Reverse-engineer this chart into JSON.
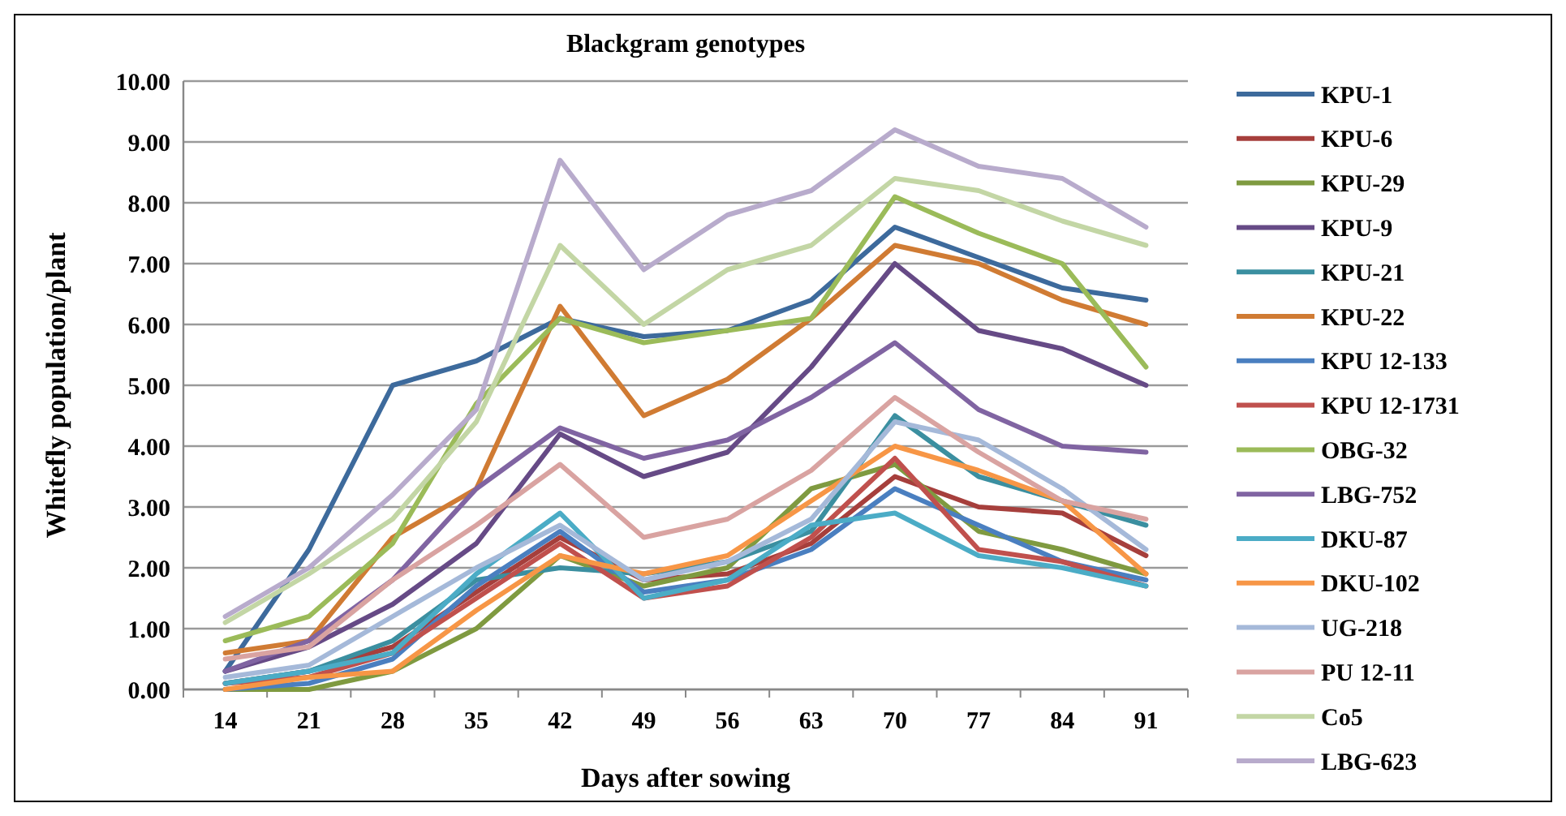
{
  "chart_data": {
    "type": "line",
    "title": "Blackgram genotypes",
    "xlabel": "Days after sowing",
    "ylabel": "Whitefly population/plant",
    "categories": [
      "14",
      "21",
      "28",
      "35",
      "42",
      "49",
      "56",
      "63",
      "70",
      "77",
      "84",
      "91"
    ],
    "ylim": [
      0,
      10
    ],
    "yticks": [
      {
        "value": 0,
        "label": "0.00"
      },
      {
        "value": 1,
        "label": "1.00"
      },
      {
        "value": 2,
        "label": "2.00"
      },
      {
        "value": 3,
        "label": "3.00"
      },
      {
        "value": 4,
        "label": "4.00"
      },
      {
        "value": 5,
        "label": "5.00"
      },
      {
        "value": 6,
        "label": "6.00"
      },
      {
        "value": 7,
        "label": "7.00"
      },
      {
        "value": 8,
        "label": "8.00"
      },
      {
        "value": 9,
        "label": "9.00"
      },
      {
        "value": 10,
        "label": "10.00"
      }
    ],
    "grid": "y",
    "legend": "right",
    "marker": "none",
    "line_style": "solid",
    "series": [
      {
        "name": "KPU-1",
        "color": "#3d6a9c",
        "values": [
          0.3,
          2.3,
          5.0,
          5.4,
          6.1,
          5.8,
          5.9,
          6.4,
          7.6,
          7.1,
          6.6,
          6.4
        ]
      },
      {
        "name": "KPU-6",
        "color": "#a63f3c",
        "values": [
          0.1,
          0.3,
          0.7,
          1.6,
          2.5,
          1.8,
          1.9,
          2.4,
          3.5,
          3.0,
          2.9,
          2.2
        ]
      },
      {
        "name": "KPU-29",
        "color": "#7f9a40",
        "values": [
          0.0,
          0.0,
          0.3,
          1.0,
          2.2,
          1.7,
          2.0,
          3.3,
          3.7,
          2.6,
          2.3,
          1.9
        ]
      },
      {
        "name": "KPU-9",
        "color": "#664a86",
        "values": [
          0.3,
          0.7,
          1.4,
          2.4,
          4.2,
          3.5,
          3.9,
          5.3,
          7.0,
          5.9,
          5.6,
          5.0
        ]
      },
      {
        "name": "KPU-21",
        "color": "#3b8fa0",
        "values": [
          0.1,
          0.3,
          0.8,
          1.8,
          2.0,
          1.9,
          2.1,
          2.6,
          4.5,
          3.5,
          3.1,
          2.7
        ]
      },
      {
        "name": "KPU-22",
        "color": "#d07b33",
        "values": [
          0.6,
          0.8,
          2.5,
          3.3,
          6.3,
          4.5,
          5.1,
          6.1,
          7.3,
          7.0,
          6.4,
          6.0
        ]
      },
      {
        "name": "KPU 12-133",
        "color": "#4a7fc0",
        "values": [
          0.0,
          0.1,
          0.5,
          1.7,
          2.6,
          1.6,
          1.8,
          2.3,
          3.3,
          2.7,
          2.1,
          1.8
        ]
      },
      {
        "name": "KPU 12-1731",
        "color": "#c0504d",
        "values": [
          0.1,
          0.2,
          0.6,
          1.5,
          2.4,
          1.5,
          1.7,
          2.5,
          3.8,
          2.3,
          2.1,
          1.7
        ]
      },
      {
        "name": "OBG-32",
        "color": "#9bbb59",
        "values": [
          0.8,
          1.2,
          2.4,
          4.7,
          6.1,
          5.7,
          5.9,
          6.1,
          8.1,
          7.5,
          7.0,
          5.3
        ]
      },
      {
        "name": "LBG-752",
        "color": "#8064a2",
        "values": [
          0.3,
          0.8,
          1.8,
          3.3,
          4.3,
          3.8,
          4.1,
          4.8,
          5.7,
          4.6,
          4.0,
          3.9
        ]
      },
      {
        "name": "DKU-87",
        "color": "#4bacc6",
        "values": [
          0.1,
          0.3,
          0.6,
          1.9,
          2.9,
          1.5,
          1.8,
          2.7,
          2.9,
          2.2,
          2.0,
          1.7
        ]
      },
      {
        "name": "DKU-102",
        "color": "#f79646",
        "values": [
          0.0,
          0.2,
          0.3,
          1.3,
          2.2,
          1.9,
          2.2,
          3.1,
          4.0,
          3.6,
          3.1,
          1.9
        ]
      },
      {
        "name": "UG-218",
        "color": "#a5b9d9",
        "values": [
          0.2,
          0.4,
          1.2,
          2.0,
          2.7,
          1.8,
          2.1,
          2.8,
          4.4,
          4.1,
          3.3,
          2.3
        ]
      },
      {
        "name": "PU 12-11",
        "color": "#d9a3a1",
        "values": [
          0.5,
          0.7,
          1.8,
          2.7,
          3.7,
          2.5,
          2.8,
          3.6,
          4.8,
          3.9,
          3.1,
          2.8
        ]
      },
      {
        "name": "Co5",
        "color": "#c3d6a5",
        "values": [
          1.1,
          1.9,
          2.8,
          4.4,
          7.3,
          6.0,
          6.9,
          7.3,
          8.4,
          8.2,
          7.7,
          7.3
        ]
      },
      {
        "name": "LBG-623",
        "color": "#b8abcc",
        "values": [
          1.2,
          2.0,
          3.2,
          4.6,
          8.7,
          6.9,
          7.8,
          8.2,
          9.2,
          8.6,
          8.4,
          7.6
        ]
      }
    ]
  }
}
